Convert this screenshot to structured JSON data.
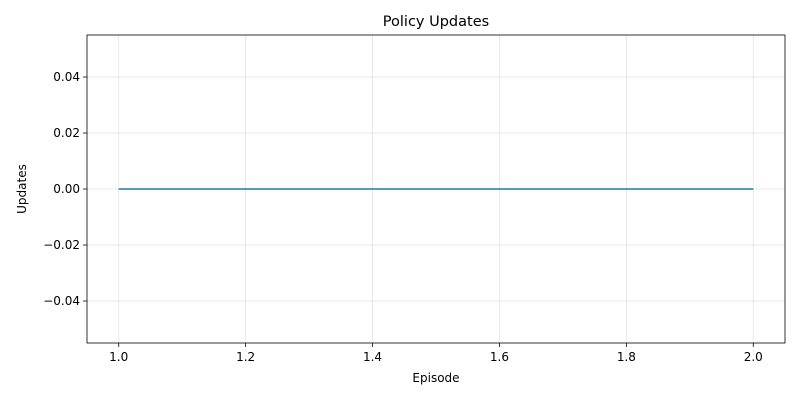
{
  "chart_data": {
    "type": "line",
    "title": "Policy Updates",
    "xlabel": "Episode",
    "ylabel": "Updates",
    "xlim": [
      0.95,
      2.05
    ],
    "ylim": [
      -0.055,
      0.055
    ],
    "xticks": [
      1.0,
      1.2,
      1.4,
      1.6,
      1.8,
      2.0
    ],
    "xtick_labels": [
      "1.0",
      "1.2",
      "1.4",
      "1.6",
      "1.8",
      "2.0"
    ],
    "yticks": [
      -0.04,
      -0.02,
      0.0,
      0.02,
      0.04
    ],
    "ytick_labels": [
      "−0.04",
      "−0.02",
      "0.00",
      "0.02",
      "0.04"
    ],
    "grid": true,
    "series": [
      {
        "x": [
          1,
          2
        ],
        "y": [
          0,
          0
        ],
        "color": "#1f77b4"
      }
    ]
  }
}
